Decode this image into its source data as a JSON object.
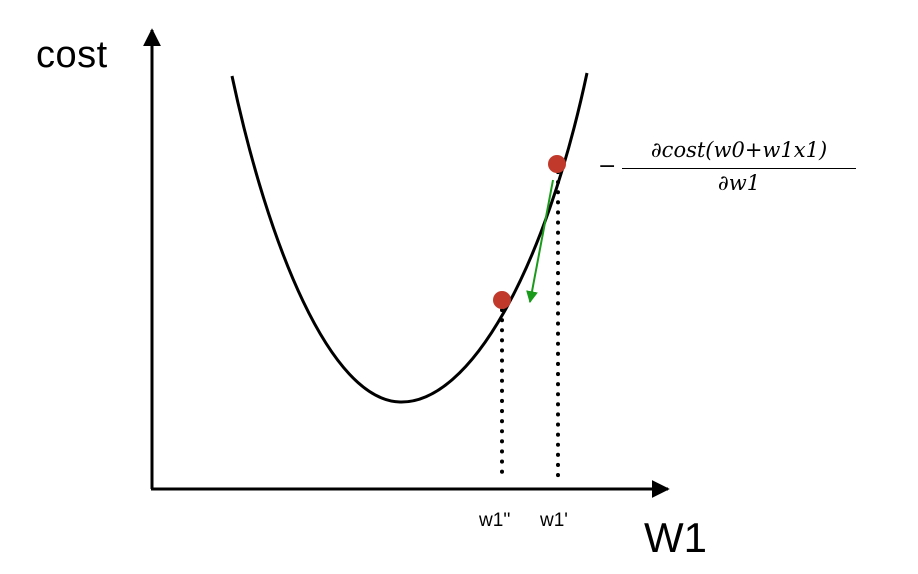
{
  "axes": {
    "y_title": "cost",
    "x_title": "W1"
  },
  "ticks": {
    "w1_double_prime": "w1''",
    "w1_prime": "w1'"
  },
  "formula": {
    "sign": "−",
    "numerator": "∂cost(w0+w1x1)",
    "denominator": "∂w1"
  },
  "colors": {
    "curve": "#000000",
    "point": "#c0392b",
    "gradient_arrow": "#1a9a1a",
    "axis": "#000000"
  }
}
